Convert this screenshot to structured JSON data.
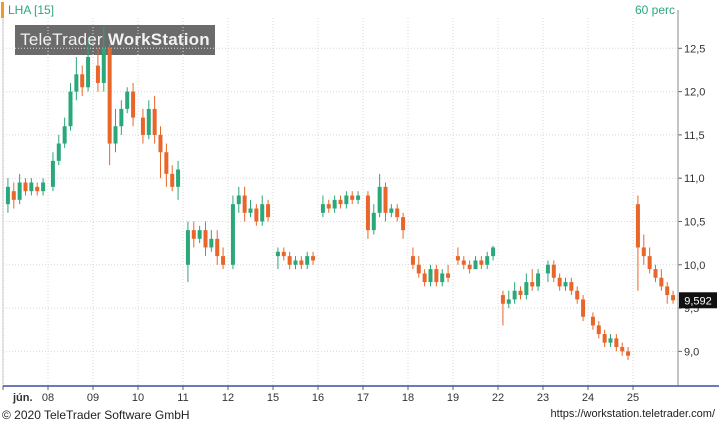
{
  "header": {
    "symbol_label": "LHA [15]",
    "interval_label": "60 perc"
  },
  "watermark": {
    "brand": "TeleTrader",
    "product": "WorkStation"
  },
  "footer": {
    "copyright": "© 2020 TeleTrader Software GmbH",
    "url": "https://workstation.teletrader.com/"
  },
  "colors": {
    "up": "#2aa87a",
    "down": "#e8662a",
    "accent": "#f39a1e",
    "axis_line": "#3a4fa0",
    "grid": "#d8d8d8",
    "text": "#333333"
  },
  "chart_data": {
    "type": "candlestick",
    "title": "",
    "ylim": [
      8.6,
      12.85
    ],
    "y_ticks": [
      9.0,
      9.5,
      10.0,
      10.5,
      11.0,
      11.5,
      12.0,
      12.5
    ],
    "y_tick_labels": [
      "9,0",
      "9,5",
      "10,0",
      "10,5",
      "11,0",
      "11,5",
      "12,0",
      "12,5"
    ],
    "x_labels": [
      "jún.",
      "08",
      "09",
      "10",
      "11",
      "12",
      "15",
      "16",
      "17",
      "18",
      "19",
      "22",
      "23",
      "24",
      "25"
    ],
    "last_price": "9,592",
    "grid": true,
    "days": [
      {
        "label": "jún.",
        "candles": [
          [
            10.7,
            10.9,
            11.0,
            10.6
          ],
          [
            10.85,
            10.75,
            10.95,
            10.65
          ],
          [
            10.75,
            10.95,
            11.05,
            10.7
          ],
          [
            10.95,
            10.85,
            11.0,
            10.8
          ],
          [
            10.85,
            10.95,
            11.0,
            10.8
          ],
          [
            10.9,
            10.85,
            10.95,
            10.8
          ],
          [
            10.85,
            10.95,
            11.0,
            10.8
          ]
        ]
      },
      {
        "label": "08",
        "candles": [
          [
            10.9,
            11.2,
            11.3,
            10.85
          ],
          [
            11.2,
            11.4,
            11.5,
            11.15
          ],
          [
            11.4,
            11.6,
            11.7,
            11.35
          ],
          [
            11.6,
            12.0,
            12.1,
            11.55
          ],
          [
            12.0,
            12.2,
            12.4,
            11.9
          ],
          [
            12.2,
            12.05,
            12.3,
            11.95
          ],
          [
            12.05,
            12.4,
            12.6,
            12.0
          ]
        ]
      },
      {
        "label": "09",
        "candles": [
          [
            12.3,
            12.1,
            12.5,
            12.0
          ],
          [
            12.1,
            12.5,
            12.75,
            12.0
          ],
          [
            12.5,
            11.4,
            12.55,
            11.15
          ],
          [
            11.4,
            11.6,
            11.8,
            11.3
          ],
          [
            11.6,
            11.8,
            11.9,
            11.5
          ],
          [
            11.8,
            12.0,
            12.05,
            11.75
          ],
          [
            12.0,
            11.7,
            12.1,
            11.6
          ]
        ]
      },
      {
        "label": "10",
        "candles": [
          [
            11.7,
            11.5,
            11.8,
            11.4
          ],
          [
            11.5,
            11.8,
            11.9,
            11.45
          ],
          [
            11.8,
            11.5,
            11.95,
            11.4
          ],
          [
            11.5,
            11.3,
            11.6,
            11.0
          ],
          [
            11.3,
            11.05,
            11.4,
            10.9
          ],
          [
            11.05,
            10.9,
            11.15,
            10.85
          ],
          [
            10.9,
            11.1,
            11.2,
            10.75
          ]
        ]
      },
      {
        "label": "11",
        "candles": [
          [
            10.0,
            10.4,
            10.5,
            9.8
          ],
          [
            10.4,
            10.3,
            10.5,
            10.2
          ],
          [
            10.3,
            10.4,
            10.45,
            10.25
          ],
          [
            10.4,
            10.2,
            10.5,
            10.1
          ],
          [
            10.2,
            10.3,
            10.4,
            10.15
          ],
          [
            10.3,
            10.1,
            10.4,
            10.0
          ],
          [
            10.1,
            10.0,
            10.2,
            9.95
          ]
        ]
      },
      {
        "label": "12",
        "candles": [
          [
            10.0,
            10.7,
            10.8,
            9.95
          ],
          [
            10.7,
            10.8,
            10.9,
            10.6
          ],
          [
            10.8,
            10.6,
            10.9,
            10.5
          ],
          [
            10.6,
            10.65,
            10.75,
            10.55
          ],
          [
            10.65,
            10.5,
            10.7,
            10.45
          ],
          [
            10.5,
            10.7,
            10.8,
            10.45
          ],
          [
            10.7,
            10.55,
            10.75,
            10.5
          ]
        ]
      },
      {
        "label": "15",
        "candles": [
          [
            10.1,
            10.15,
            10.2,
            9.95
          ],
          [
            10.15,
            10.1,
            10.2,
            10.05
          ],
          [
            10.1,
            10.0,
            10.15,
            9.95
          ],
          [
            10.0,
            10.05,
            10.1,
            9.95
          ],
          [
            10.05,
            10.0,
            10.1,
            9.95
          ],
          [
            10.0,
            10.1,
            10.15,
            9.95
          ],
          [
            10.1,
            10.05,
            10.15,
            10.0
          ]
        ]
      },
      {
        "label": "16",
        "candles": [
          [
            10.6,
            10.7,
            10.8,
            10.55
          ],
          [
            10.7,
            10.65,
            10.75,
            10.6
          ],
          [
            10.65,
            10.75,
            10.8,
            10.6
          ],
          [
            10.75,
            10.7,
            10.8,
            10.65
          ],
          [
            10.7,
            10.8,
            10.85,
            10.65
          ],
          [
            10.8,
            10.75,
            10.85,
            10.7
          ],
          [
            10.75,
            10.8,
            10.85,
            10.7
          ]
        ]
      },
      {
        "label": "17",
        "candles": [
          [
            10.8,
            10.4,
            10.85,
            10.3
          ],
          [
            10.4,
            10.6,
            10.7,
            10.35
          ],
          [
            10.6,
            10.9,
            11.05,
            10.55
          ],
          [
            10.9,
            10.6,
            10.95,
            10.5
          ],
          [
            10.6,
            10.65,
            10.7,
            10.55
          ],
          [
            10.65,
            10.55,
            10.7,
            10.5
          ],
          [
            10.55,
            10.4,
            10.6,
            10.3
          ]
        ]
      },
      {
        "label": "18",
        "candles": [
          [
            10.1,
            10.0,
            10.2,
            9.95
          ],
          [
            10.0,
            9.9,
            10.1,
            9.85
          ],
          [
            9.9,
            9.8,
            9.95,
            9.75
          ],
          [
            9.8,
            9.95,
            10.0,
            9.75
          ],
          [
            9.95,
            9.8,
            10.0,
            9.75
          ],
          [
            9.8,
            9.9,
            9.95,
            9.75
          ],
          [
            9.9,
            9.85,
            10.0,
            9.8
          ]
        ]
      },
      {
        "label": "19",
        "candles": [
          [
            10.1,
            10.05,
            10.2,
            10.0
          ],
          [
            10.05,
            10.0,
            10.1,
            9.95
          ],
          [
            10.0,
            9.95,
            10.05,
            9.9
          ],
          [
            9.95,
            10.05,
            10.1,
            9.95
          ],
          [
            10.05,
            10.0,
            10.1,
            9.95
          ],
          [
            10.0,
            10.1,
            10.15,
            9.95
          ],
          [
            10.1,
            10.2,
            10.22,
            10.05
          ]
        ]
      },
      {
        "label": "22",
        "candles": [
          [
            9.65,
            9.55,
            9.7,
            9.3
          ],
          [
            9.55,
            9.6,
            9.7,
            9.5
          ],
          [
            9.6,
            9.7,
            9.8,
            9.55
          ],
          [
            9.7,
            9.65,
            9.75,
            9.6
          ],
          [
            9.65,
            9.8,
            9.9,
            9.6
          ],
          [
            9.8,
            9.75,
            9.95,
            9.7
          ],
          [
            9.75,
            9.9,
            9.95,
            9.7
          ]
        ]
      },
      {
        "label": "23",
        "candles": [
          [
            9.9,
            10.0,
            10.05,
            9.8
          ],
          [
            10.0,
            9.85,
            10.05,
            9.8
          ],
          [
            9.85,
            9.75,
            9.9,
            9.7
          ],
          [
            9.75,
            9.8,
            9.85,
            9.7
          ],
          [
            9.8,
            9.7,
            9.85,
            9.65
          ],
          [
            9.7,
            9.6,
            9.75,
            9.55
          ],
          [
            9.6,
            9.4,
            9.65,
            9.35
          ]
        ]
      },
      {
        "label": "24",
        "candles": [
          [
            9.4,
            9.3,
            9.45,
            9.25
          ],
          [
            9.3,
            9.2,
            9.35,
            9.15
          ],
          [
            9.2,
            9.1,
            9.25,
            9.05
          ],
          [
            9.1,
            9.15,
            9.2,
            9.05
          ],
          [
            9.15,
            9.05,
            9.2,
            9.0
          ],
          [
            9.05,
            9.0,
            9.1,
            8.95
          ],
          [
            9.0,
            8.95,
            9.05,
            8.9
          ]
        ]
      },
      {
        "label": "25",
        "candles": [
          [
            10.7,
            10.2,
            10.8,
            9.7
          ],
          [
            10.2,
            10.1,
            10.35,
            10.0
          ],
          [
            10.1,
            9.95,
            10.2,
            9.9
          ],
          [
            9.95,
            9.85,
            10.0,
            9.8
          ],
          [
            9.85,
            9.75,
            9.95,
            9.7
          ],
          [
            9.75,
            9.65,
            9.8,
            9.55
          ],
          [
            9.65,
            9.59,
            9.7,
            9.55
          ]
        ]
      }
    ]
  }
}
